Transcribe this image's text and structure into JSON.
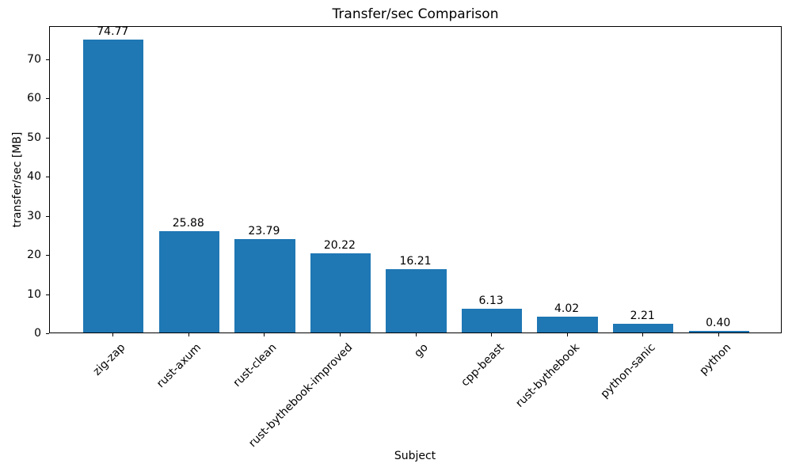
{
  "chart_data": {
    "type": "bar",
    "title": "Transfer/sec Comparison",
    "xlabel": "Subject",
    "ylabel": "transfer/sec [MB]",
    "categories": [
      "zig-zap",
      "rust-axum",
      "rust-clean",
      "rust-bythebook-improved",
      "go",
      "cpp-beast",
      "rust-bythebook",
      "python-sanic",
      "python"
    ],
    "values": [
      74.77,
      25.88,
      23.79,
      20.22,
      16.21,
      6.13,
      4.02,
      2.21,
      0.4
    ],
    "value_labels": [
      "74.77",
      "25.88",
      "23.79",
      "20.22",
      "16.21",
      "6.13",
      "4.02",
      "2.21",
      "0.40"
    ],
    "yticks": [
      0,
      10,
      20,
      30,
      40,
      50,
      60,
      70
    ],
    "ylim": [
      0,
      78.5
    ],
    "bar_color": "#1f77b4",
    "grid": false,
    "legend_position": "none",
    "x_tick_label_rotation_deg": 45
  }
}
